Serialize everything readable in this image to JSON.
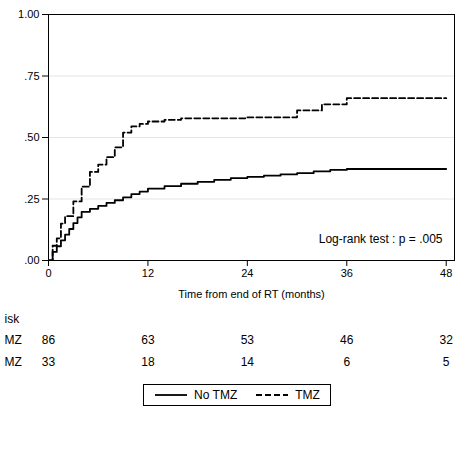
{
  "chart_data": {
    "type": "step",
    "xlabel": "Time from end of RT (months)",
    "xlim": [
      0,
      49
    ],
    "ylim": [
      0,
      1.0
    ],
    "xticks": [
      0,
      12,
      24,
      36,
      48
    ],
    "yticks": [
      {
        "value": 0.0,
        "label": ".00"
      },
      {
        "value": 0.25,
        "label": ".25"
      },
      {
        "value": 0.5,
        "label": ".50"
      },
      {
        "value": 0.75,
        "label": ".75"
      },
      {
        "value": 1.0,
        "label": "1.00"
      }
    ],
    "grid": "y",
    "legend": "bottom",
    "annotation": "Log-rank test : p = .005",
    "series": [
      {
        "name": "No TMZ",
        "color": "#000000",
        "line_style": "solid",
        "x": [
          0,
          0.5,
          1,
          1.5,
          2,
          2.5,
          3,
          3.5,
          4,
          5,
          6,
          7,
          8,
          9,
          10,
          11,
          12,
          14,
          16,
          18,
          20,
          22,
          24,
          26,
          28,
          30,
          32,
          34,
          36,
          48
        ],
        "values": [
          0,
          0.035,
          0.058,
          0.082,
          0.105,
          0.128,
          0.152,
          0.175,
          0.198,
          0.21,
          0.222,
          0.234,
          0.245,
          0.257,
          0.27,
          0.28,
          0.292,
          0.302,
          0.312,
          0.32,
          0.328,
          0.335,
          0.34,
          0.345,
          0.35,
          0.355,
          0.362,
          0.368,
          0.372,
          0.372
        ]
      },
      {
        "name": "TMZ",
        "color": "#000000",
        "line_style": "dashed",
        "x": [
          0,
          0.5,
          1,
          1.5,
          2,
          3,
          4,
          5,
          6,
          7,
          8,
          9,
          10,
          11,
          12,
          14,
          16,
          24,
          30,
          33,
          36,
          48
        ],
        "values": [
          0,
          0.06,
          0.09,
          0.15,
          0.18,
          0.24,
          0.3,
          0.36,
          0.39,
          0.42,
          0.46,
          0.52,
          0.545,
          0.555,
          0.565,
          0.572,
          0.578,
          0.582,
          0.61,
          0.635,
          0.66,
          0.66
        ]
      }
    ],
    "risk_table": {
      "label": "isk",
      "times": [
        0,
        12,
        24,
        36,
        48
      ],
      "rows": [
        {
          "name": "MZ",
          "values": [
            86,
            63,
            53,
            46,
            32
          ]
        },
        {
          "name": "MZ",
          "values": [
            33,
            18,
            14,
            6,
            5
          ]
        }
      ]
    }
  }
}
